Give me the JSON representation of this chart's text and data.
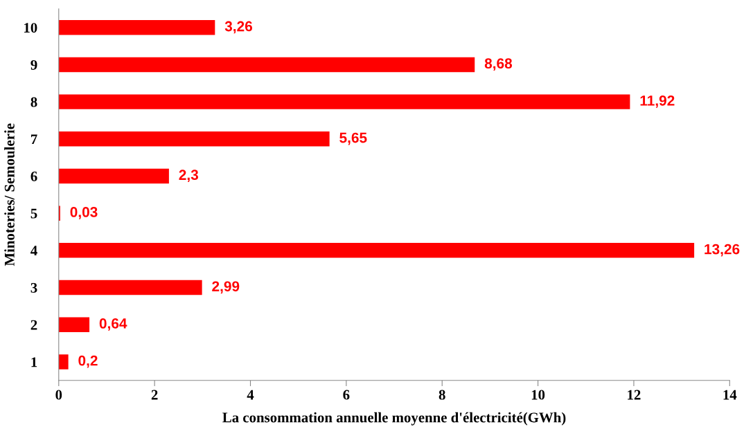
{
  "chart_data": {
    "type": "bar",
    "orientation": "horizontal",
    "xlabel": "La consommation annuelle moyenne d'électricité(GWh)",
    "ylabel": "Minoteries/ Semoulerie",
    "categories": [
      "10",
      "9",
      "8",
      "7",
      "6",
      "5",
      "4",
      "3",
      "2",
      "1"
    ],
    "values": [
      3.26,
      8.68,
      11.92,
      5.65,
      2.3,
      0.03,
      13.26,
      2.99,
      0.64,
      0.2
    ],
    "value_labels": [
      "3,26",
      "8,68",
      "11,92",
      "5,65",
      "2,3",
      "0,03",
      "13,26",
      "2,99",
      "0,64",
      "0,2"
    ],
    "color": "#ff0000",
    "xlim": [
      0,
      14
    ],
    "xticks": [
      0,
      2,
      4,
      6,
      8,
      10,
      12,
      14
    ],
    "grid": false,
    "legend": false
  }
}
